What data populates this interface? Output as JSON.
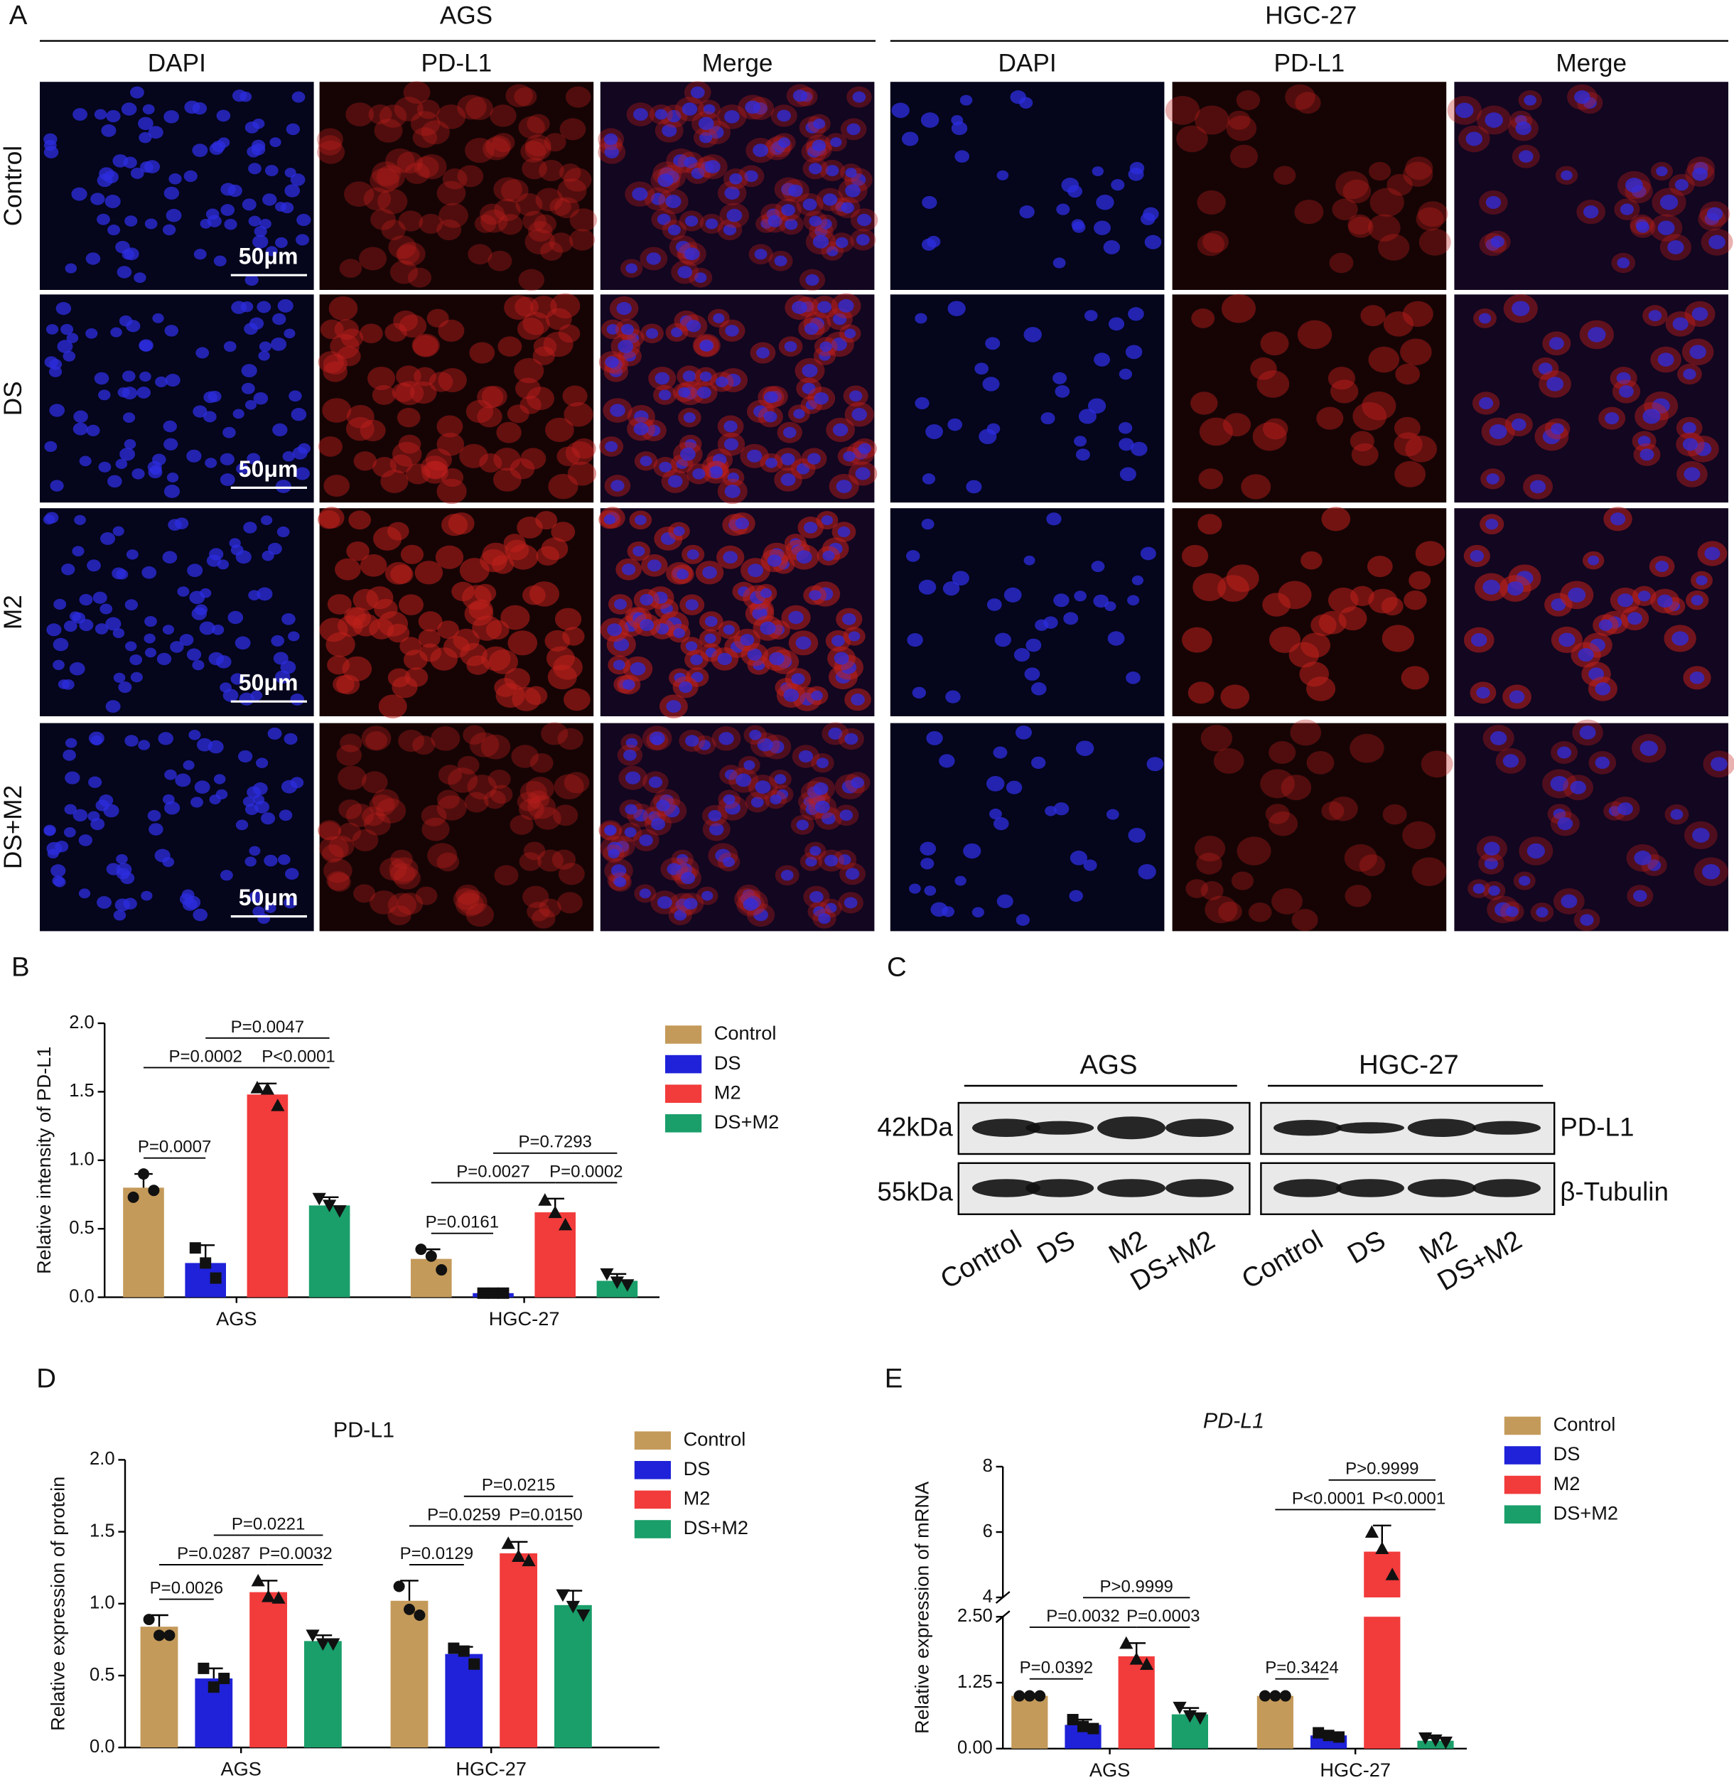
{
  "panel_a": {
    "panel": "A",
    "groups": [
      "AGS",
      "HGC-27"
    ],
    "channels": [
      "DAPI",
      "PD-L1",
      "Merge"
    ],
    "rows": [
      "Control",
      "DS",
      "M2",
      "DS+M2"
    ],
    "scale_bar": "50μm"
  },
  "panel_c": {
    "panel": "C",
    "groups": [
      "AGS",
      "HGC-27"
    ],
    "lanes": [
      "Control",
      "DS",
      "M2",
      "DS+M2"
    ],
    "proteins": [
      {
        "name": "PD-L1",
        "size": "42kDa"
      },
      {
        "name": "β-Tubulin",
        "size": "55kDa"
      }
    ]
  },
  "chart_data": [
    {
      "panel": "B",
      "type": "bar",
      "y_label": "Relative intensity of PD-L1",
      "categories": [
        "AGS",
        "HGC-27"
      ],
      "ylim": [
        0,
        2
      ],
      "yticks": [
        {
          "value": 0,
          "label": "0.0"
        },
        0.5,
        {
          "value": 1,
          "label": "1.0"
        },
        1.5,
        {
          "value": 2,
          "label": "2.0"
        }
      ],
      "series": [
        {
          "name": "Control",
          "color": "#c49a5a",
          "values": [
            0.8,
            0.28
          ],
          "errors": [
            0.1,
            0.07
          ],
          "points": [
            [
              0.73,
              0.9,
              0.78
            ],
            [
              0.35,
              0.3,
              0.2
            ]
          ]
        },
        {
          "name": "DS",
          "color": "#1f22d8",
          "values": [
            0.25,
            0.03
          ],
          "errors": [
            0.13,
            0.01
          ],
          "points": [
            [
              0.36,
              0.25,
              0.14
            ],
            [
              0.03,
              0.03,
              0.03
            ]
          ]
        },
        {
          "name": "M2",
          "color": "#f23b3b",
          "values": [
            1.48,
            0.62
          ],
          "errors": [
            0.08,
            0.1
          ],
          "points": [
            [
              1.53,
              1.52,
              1.4
            ],
            [
              0.71,
              0.62,
              0.53
            ]
          ]
        },
        {
          "name": "DS+M2",
          "color": "#1a9e6a",
          "values": [
            0.67,
            0.12
          ],
          "errors": [
            0.06,
            0.05
          ],
          "points": [
            [
              0.72,
              0.67,
              0.63
            ],
            [
              0.17,
              0.11,
              0.09
            ]
          ]
        }
      ],
      "annotations": [
        {
          "category": 0,
          "pair": [
            0,
            1
          ],
          "label": "P=0.0007"
        },
        {
          "category": 0,
          "pair": [
            0,
            2
          ],
          "label": "P=0.0002"
        },
        {
          "category": 0,
          "pair": [
            2,
            3
          ],
          "label": "P<0.0001"
        },
        {
          "category": 0,
          "pair": [
            1,
            3
          ],
          "label": "P=0.0047"
        },
        {
          "category": 1,
          "pair": [
            0,
            1
          ],
          "label": "P=0.0161"
        },
        {
          "category": 1,
          "pair": [
            0,
            2
          ],
          "label": "P=0.0027"
        },
        {
          "category": 1,
          "pair": [
            2,
            3
          ],
          "label": "P=0.0002"
        },
        {
          "category": 1,
          "pair": [
            1,
            3
          ],
          "label": "P=0.7293"
        }
      ]
    },
    {
      "panel": "D",
      "type": "bar",
      "title": "PD-L1",
      "y_label": "Relative expression of protein",
      "categories": [
        "AGS",
        "HGC-27"
      ],
      "ylim": [
        0,
        2
      ],
      "yticks": [
        {
          "value": 0,
          "label": "0.0"
        },
        0.5,
        {
          "value": 1,
          "label": "1.0"
        },
        1.5,
        {
          "value": 2,
          "label": "2.0"
        }
      ],
      "series": [
        {
          "name": "Control",
          "color": "#c49a5a",
          "values": [
            0.84,
            1.02
          ],
          "errors": [
            0.08,
            0.14
          ],
          "points": [
            [
              0.89,
              0.78,
              0.78
            ],
            [
              1.12,
              0.96,
              0.92
            ]
          ]
        },
        {
          "name": "DS",
          "color": "#1f22d8",
          "values": [
            0.48,
            0.65
          ],
          "errors": [
            0.07,
            0.05
          ],
          "points": [
            [
              0.55,
              0.42,
              0.48
            ],
            [
              0.69,
              0.67,
              0.58
            ]
          ]
        },
        {
          "name": "M2",
          "color": "#f23b3b",
          "values": [
            1.08,
            1.35
          ],
          "errors": [
            0.08,
            0.08
          ],
          "points": [
            [
              1.16,
              1.05,
              1.04
            ],
            [
              1.42,
              1.33,
              1.3
            ]
          ]
        },
        {
          "name": "DS+M2",
          "color": "#1a9e6a",
          "values": [
            0.74,
            0.99
          ],
          "errors": [
            0.04,
            0.1
          ],
          "points": [
            [
              0.78,
              0.72,
              0.72
            ],
            [
              1.06,
              0.98,
              0.92
            ]
          ]
        }
      ],
      "annotations": [
        {
          "category": 0,
          "pair": [
            0,
            1
          ],
          "label": "P=0.0026"
        },
        {
          "category": 0,
          "pair": [
            0,
            2
          ],
          "label": "P=0.0287"
        },
        {
          "category": 0,
          "pair": [
            2,
            3
          ],
          "label": "P=0.0032"
        },
        {
          "category": 0,
          "pair": [
            1,
            3
          ],
          "label": "P=0.0221"
        },
        {
          "category": 1,
          "pair": [
            0,
            1
          ],
          "label": "P=0.0129"
        },
        {
          "category": 1,
          "pair": [
            0,
            2
          ],
          "label": "P=0.0259"
        },
        {
          "category": 1,
          "pair": [
            2,
            3
          ],
          "label": "P=0.0150"
        },
        {
          "category": 1,
          "pair": [
            1,
            3
          ],
          "label": "P=0.0215"
        }
      ]
    },
    {
      "panel": "E",
      "type": "bar",
      "title": "PD-L1",
      "title_italic": true,
      "y_label": "Relative expression of mRNA",
      "categories": [
        "AGS",
        "HGC-27"
      ],
      "ylim": [
        0,
        8
      ],
      "ybreak": [
        2.5,
        4
      ],
      "yticks": [
        {
          "value": 0,
          "label": "0.00"
        },
        1.25,
        {
          "value": 2.5,
          "label": "2.50"
        },
        4,
        6,
        8
      ],
      "series": [
        {
          "name": "Control",
          "color": "#c49a5a",
          "values": [
            1.0,
            1.0
          ],
          "errors": [
            0.02,
            0.02
          ],
          "points": [
            [
              1.0,
              1.0,
              1.0
            ],
            [
              1.0,
              1.0,
              1.0
            ]
          ]
        },
        {
          "name": "DS",
          "color": "#1f22d8",
          "values": [
            0.45,
            0.25
          ],
          "errors": [
            0.1,
            0.05
          ],
          "points": [
            [
              0.55,
              0.42,
              0.38
            ],
            [
              0.3,
              0.25,
              0.22
            ]
          ]
        },
        {
          "name": "M2",
          "color": "#f23b3b",
          "values": [
            1.75,
            5.4
          ],
          "errors": [
            0.25,
            0.8
          ],
          "points": [
            [
              2.0,
              1.7,
              1.6
            ],
            [
              6.0,
              5.5,
              4.7
            ]
          ]
        },
        {
          "name": "DS+M2",
          "color": "#1a9e6a",
          "values": [
            0.65,
            0.15
          ],
          "errors": [
            0.12,
            0.05
          ],
          "points": [
            [
              0.78,
              0.62,
              0.58
            ],
            [
              0.2,
              0.16,
              0.12
            ]
          ]
        }
      ],
      "annotations": [
        {
          "category": 0,
          "pair": [
            0,
            1
          ],
          "label": "P=0.0392"
        },
        {
          "category": 0,
          "pair": [
            0,
            2
          ],
          "label": "P=0.0032"
        },
        {
          "category": 0,
          "pair": [
            2,
            3
          ],
          "label": "P=0.0003"
        },
        {
          "category": 0,
          "pair": [
            1,
            3
          ],
          "label": "P>0.9999"
        },
        {
          "category": 1,
          "pair": [
            0,
            1
          ],
          "label": "P=0.3424"
        },
        {
          "category": 1,
          "pair": [
            0,
            2
          ],
          "label": "P<0.0001"
        },
        {
          "category": 1,
          "pair": [
            2,
            3
          ],
          "label": "P<0.0001"
        },
        {
          "category": 1,
          "pair": [
            1,
            3
          ],
          "label": "P>0.9999"
        }
      ]
    }
  ]
}
